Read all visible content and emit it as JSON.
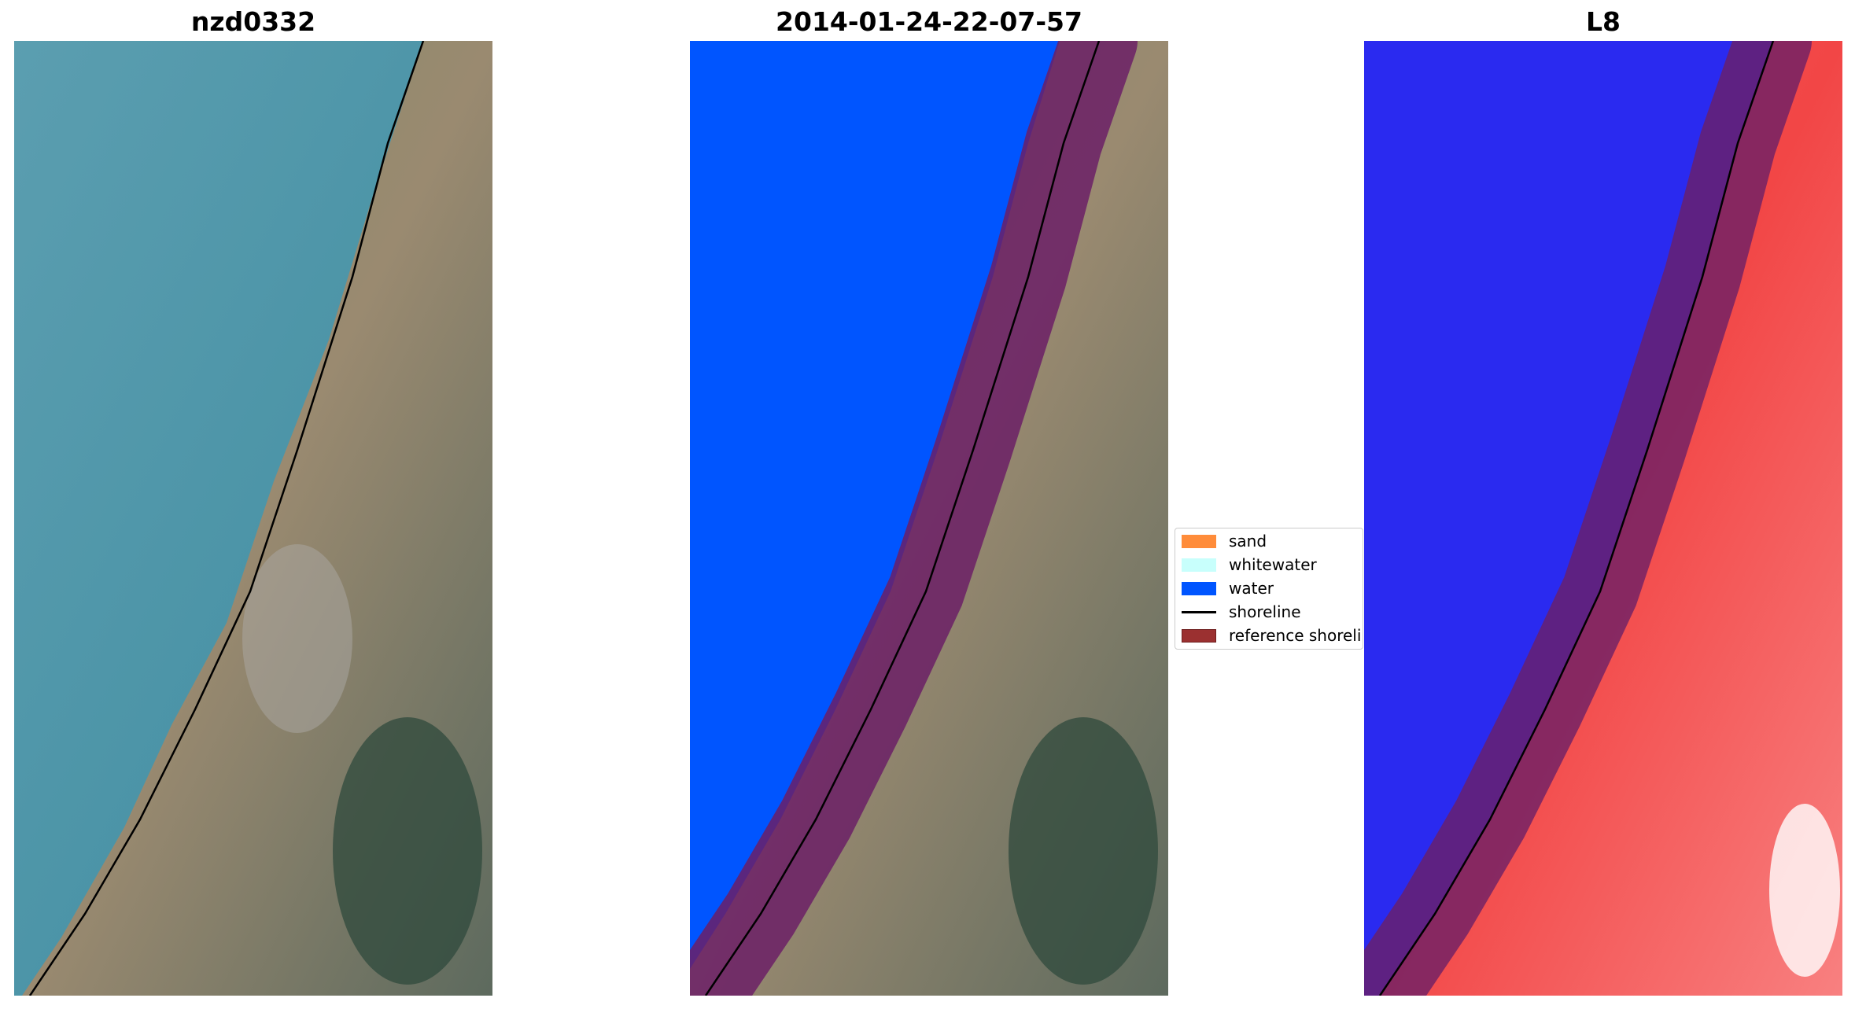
{
  "panels": {
    "left": {
      "title": "nzd0332"
    },
    "middle": {
      "title": "2014-01-24-22-07-57"
    },
    "right": {
      "title": "L8"
    }
  },
  "legend": {
    "items": [
      {
        "label": "sand",
        "color": "#ff8c3a",
        "kind": "patch"
      },
      {
        "label": "whitewater",
        "color": "#c8fffc",
        "kind": "patch"
      },
      {
        "label": "water",
        "color": "#0055ff",
        "kind": "patch"
      },
      {
        "label": "shoreline",
        "color": "#000000",
        "kind": "line"
      },
      {
        "label": "reference shoreline",
        "color": "#9b3030",
        "kind": "patch"
      }
    ]
  },
  "colors": {
    "sea": "#4f97a8",
    "land": "#8a8a68",
    "water_class": "#0055ff",
    "buffer": "#6b1f66",
    "index_water": "#2a2af0",
    "index_land": "#f04040"
  }
}
